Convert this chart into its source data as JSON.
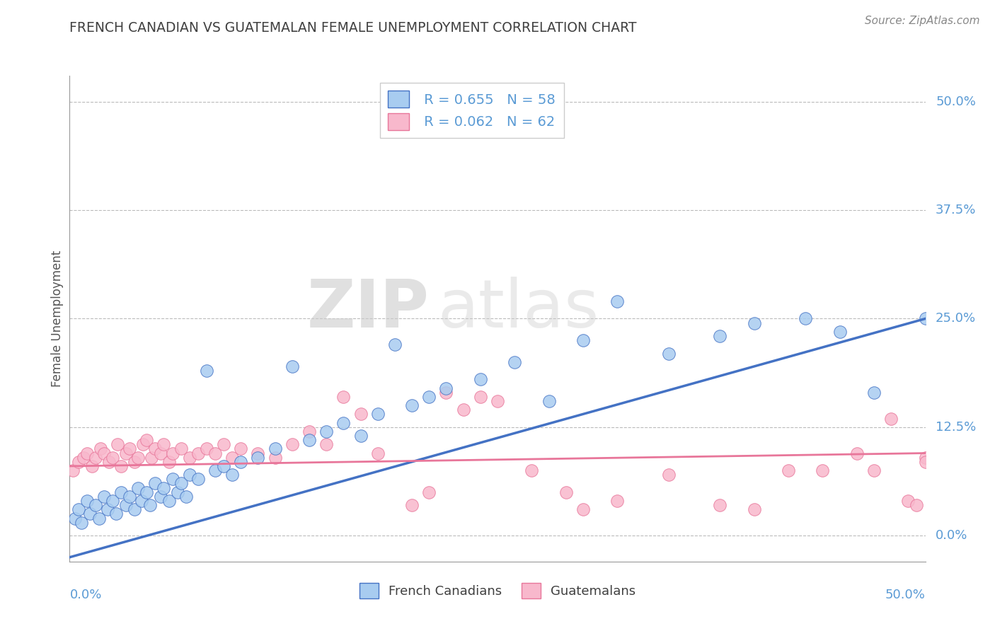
{
  "title": "FRENCH CANADIAN VS GUATEMALAN FEMALE UNEMPLOYMENT CORRELATION CHART",
  "source": "Source: ZipAtlas.com",
  "ylabel": "Female Unemployment",
  "ytick_labels": [
    "0.0%",
    "12.5%",
    "25.0%",
    "37.5%",
    "50.0%"
  ],
  "ytick_values": [
    0.0,
    12.5,
    25.0,
    37.5,
    50.0
  ],
  "xlim": [
    0.0,
    50.0
  ],
  "ylim": [
    -3.0,
    53.0
  ],
  "legend_r1": "R = 0.655",
  "legend_n1": "N = 58",
  "legend_r2": "R = 0.062",
  "legend_n2": "N = 62",
  "color_blue": "#A8CCF0",
  "color_pink": "#F8B8CC",
  "line_blue": "#4472C4",
  "line_pink": "#E8769A",
  "title_color": "#404040",
  "tick_color": "#5B9BD5",
  "watermark_zip": "ZIP",
  "watermark_atlas": "atlas",
  "blue_line_x0": 0.0,
  "blue_line_y0": -2.5,
  "blue_line_x1": 50.0,
  "blue_line_y1": 25.0,
  "pink_line_x0": 0.0,
  "pink_line_y0": 8.0,
  "pink_line_x1": 50.0,
  "pink_line_y1": 9.5,
  "blue_x": [
    0.3,
    0.5,
    0.7,
    1.0,
    1.2,
    1.5,
    1.7,
    2.0,
    2.2,
    2.5,
    2.7,
    3.0,
    3.3,
    3.5,
    3.8,
    4.0,
    4.2,
    4.5,
    4.7,
    5.0,
    5.3,
    5.5,
    5.8,
    6.0,
    6.3,
    6.5,
    6.8,
    7.0,
    7.5,
    8.0,
    8.5,
    9.0,
    9.5,
    10.0,
    11.0,
    12.0,
    13.0,
    14.0,
    15.0,
    16.0,
    17.0,
    18.0,
    19.0,
    20.0,
    21.0,
    22.0,
    24.0,
    26.0,
    28.0,
    30.0,
    32.0,
    35.0,
    38.0,
    40.0,
    43.0,
    45.0,
    47.0,
    50.0
  ],
  "blue_y": [
    2.0,
    3.0,
    1.5,
    4.0,
    2.5,
    3.5,
    2.0,
    4.5,
    3.0,
    4.0,
    2.5,
    5.0,
    3.5,
    4.5,
    3.0,
    5.5,
    4.0,
    5.0,
    3.5,
    6.0,
    4.5,
    5.5,
    4.0,
    6.5,
    5.0,
    6.0,
    4.5,
    7.0,
    6.5,
    19.0,
    7.5,
    8.0,
    7.0,
    8.5,
    9.0,
    10.0,
    19.5,
    11.0,
    12.0,
    13.0,
    11.5,
    14.0,
    22.0,
    15.0,
    16.0,
    17.0,
    18.0,
    20.0,
    15.5,
    22.5,
    27.0,
    21.0,
    23.0,
    24.5,
    25.0,
    23.5,
    16.5,
    25.0
  ],
  "pink_x": [
    0.2,
    0.5,
    0.8,
    1.0,
    1.3,
    1.5,
    1.8,
    2.0,
    2.3,
    2.5,
    2.8,
    3.0,
    3.3,
    3.5,
    3.8,
    4.0,
    4.3,
    4.5,
    4.8,
    5.0,
    5.3,
    5.5,
    5.8,
    6.0,
    6.5,
    7.0,
    7.5,
    8.0,
    8.5,
    9.0,
    9.5,
    10.0,
    11.0,
    12.0,
    13.0,
    14.0,
    15.0,
    16.0,
    17.0,
    18.0,
    20.0,
    21.0,
    22.0,
    23.0,
    24.0,
    25.0,
    27.0,
    29.0,
    30.0,
    32.0,
    35.0,
    38.0,
    40.0,
    42.0,
    44.0,
    46.0,
    47.0,
    48.0,
    49.0,
    49.5,
    50.0,
    50.0
  ],
  "pink_y": [
    7.5,
    8.5,
    9.0,
    9.5,
    8.0,
    9.0,
    10.0,
    9.5,
    8.5,
    9.0,
    10.5,
    8.0,
    9.5,
    10.0,
    8.5,
    9.0,
    10.5,
    11.0,
    9.0,
    10.0,
    9.5,
    10.5,
    8.5,
    9.5,
    10.0,
    9.0,
    9.5,
    10.0,
    9.5,
    10.5,
    9.0,
    10.0,
    9.5,
    9.0,
    10.5,
    12.0,
    10.5,
    16.0,
    14.0,
    9.5,
    3.5,
    5.0,
    16.5,
    14.5,
    16.0,
    15.5,
    7.5,
    5.0,
    3.0,
    4.0,
    7.0,
    3.5,
    3.0,
    7.5,
    7.5,
    9.5,
    7.5,
    13.5,
    4.0,
    3.5,
    9.0,
    8.5
  ]
}
